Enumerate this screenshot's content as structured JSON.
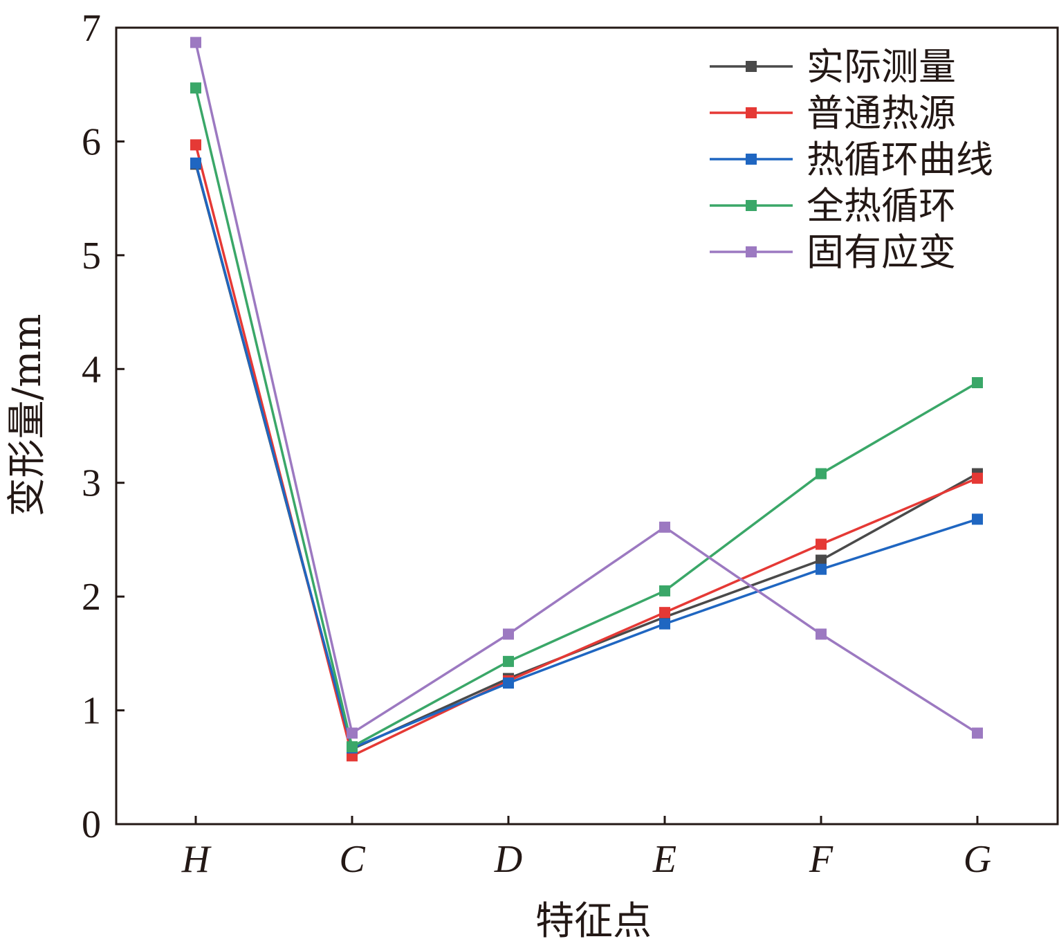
{
  "chart_data": {
    "type": "line",
    "xlabel": "特征点",
    "ylabel": "变形量/mm",
    "categories": [
      "H",
      "C",
      "D",
      "E",
      "F",
      "G"
    ],
    "ylim": [
      0,
      7
    ],
    "yticks": [
      0,
      1,
      2,
      3,
      4,
      5,
      6,
      7
    ],
    "grid": false,
    "legend_position": "top-right",
    "series": [
      {
        "name": "实际测量",
        "color": "#4a4a4a",
        "values": [
          5.8,
          0.66,
          1.28,
          1.82,
          2.32,
          3.08
        ]
      },
      {
        "name": "普通热源",
        "color": "#e53935",
        "values": [
          5.97,
          0.6,
          1.26,
          1.86,
          2.46,
          3.04
        ]
      },
      {
        "name": "热循环曲线",
        "color": "#1f66c1",
        "values": [
          5.81,
          0.67,
          1.24,
          1.76,
          2.24,
          2.68
        ]
      },
      {
        "name": "全热循环",
        "color": "#3aa768",
        "values": [
          6.47,
          0.68,
          1.43,
          2.05,
          3.08,
          3.88
        ]
      },
      {
        "name": "固有应变",
        "color": "#9c79c1",
        "values": [
          6.87,
          0.8,
          1.67,
          2.61,
          1.67,
          0.8
        ]
      }
    ]
  }
}
